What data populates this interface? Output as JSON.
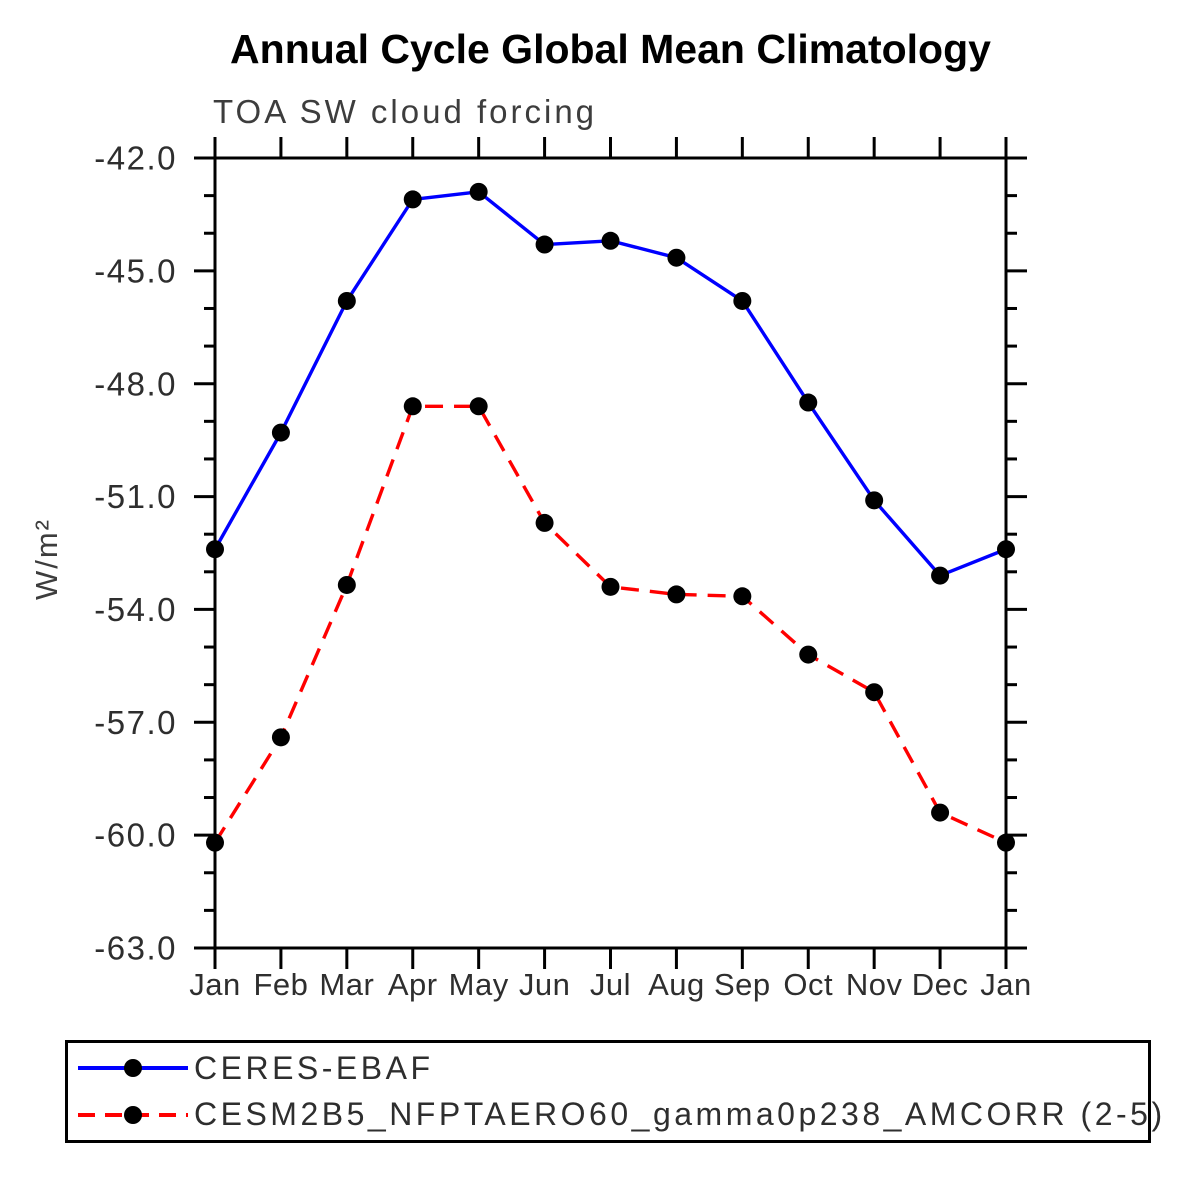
{
  "chart_data": {
    "type": "line",
    "title": "Annual Cycle Global Mean Climatology",
    "subtitle": "TOA SW cloud forcing",
    "ylabel": "W/m²",
    "xlabel": "",
    "categories": [
      "Jan",
      "Feb",
      "Mar",
      "Apr",
      "May",
      "Jun",
      "Jul",
      "Aug",
      "Sep",
      "Oct",
      "Nov",
      "Dec",
      "Jan"
    ],
    "ylim": [
      -63.0,
      -42.0
    ],
    "ytick_labels": [
      "-42.0",
      "-45.0",
      "-48.0",
      "-51.0",
      "-54.0",
      "-57.0",
      "-60.0",
      "-63.0"
    ],
    "ytick_major_interval": 3.0,
    "ytick_minor_interval": 1.0,
    "grid": false,
    "legend_position": "bottom",
    "axis_color": "#000000",
    "marker_color": "#000000",
    "series": [
      {
        "name": "CERES-EBAF",
        "color": "#0000ff",
        "line_style": "solid",
        "marker": "circle",
        "values": [
          -52.4,
          -49.3,
          -45.8,
          -43.1,
          -42.9,
          -44.3,
          -44.2,
          -44.65,
          -45.8,
          -48.5,
          -51.1,
          -53.1,
          -52.4
        ]
      },
      {
        "name": "CESM2B5_NFPTAERO60_gamma0p238_AMCORR (2-5)",
        "color": "#ff0000",
        "line_style": "dashed",
        "marker": "circle",
        "values": [
          -60.2,
          -57.4,
          -53.35,
          -48.6,
          -48.6,
          -51.7,
          -53.4,
          -53.6,
          -53.65,
          -55.2,
          -56.2,
          -59.4,
          -60.2
        ]
      }
    ]
  }
}
